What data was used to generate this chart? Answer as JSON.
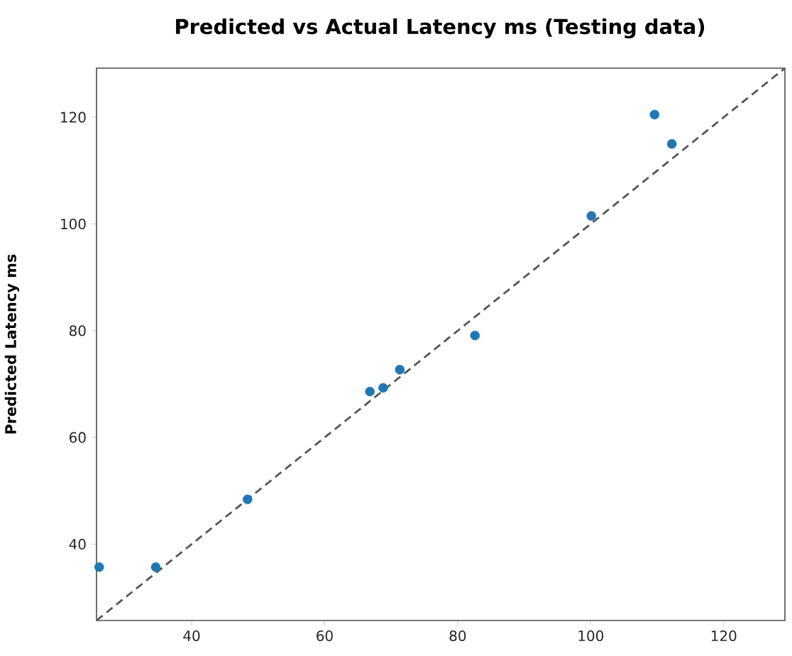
{
  "chart_data": {
    "type": "scatter",
    "title": "Predicted vs Actual Latency ms (Testing data)",
    "ylabel": "Predicted Latency ms",
    "xlim": [
      25.7,
      129.2
    ],
    "ylim": [
      25.7,
      129.2
    ],
    "xticks": [
      40,
      60,
      80,
      100,
      120
    ],
    "yticks": [
      40,
      60,
      80,
      100,
      120
    ],
    "grid": false,
    "series": [
      {
        "marker": "circle",
        "color": "#1f77b4",
        "x": [
          26.1,
          34.6,
          48.4,
          66.8,
          68.8,
          71.3,
          82.6,
          100.1,
          109.6,
          112.2
        ],
        "values": [
          35.7,
          35.7,
          48.4,
          68.6,
          69.3,
          72.7,
          79.1,
          101.5,
          120.5,
          115.0
        ]
      },
      {
        "type": "line",
        "color": "#555555",
        "line_style": "dashed",
        "marker": "none",
        "x": [
          25.7,
          129.2
        ],
        "values": [
          25.7,
          129.2
        ]
      }
    ]
  }
}
